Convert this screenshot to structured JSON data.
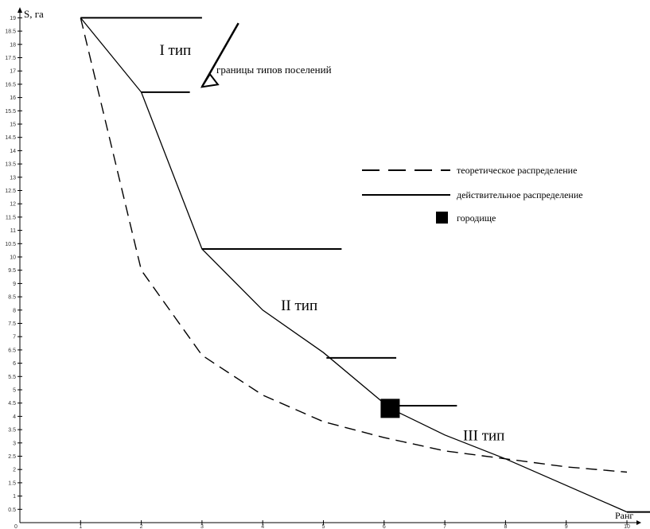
{
  "chart_data": {
    "type": "line",
    "title": "",
    "xlabel": "Ранг",
    "ylabel": "S, га",
    "xlim": [
      0,
      10
    ],
    "ylim": [
      0,
      19
    ],
    "x_ticks": [
      1,
      2,
      3,
      4,
      5,
      6,
      7,
      8,
      9,
      10
    ],
    "y_ticks": [
      "0.5",
      "1",
      "1.5",
      "2",
      "2.5",
      "3",
      "3.5",
      "4",
      "4.5",
      "5",
      "5.5",
      "6",
      "6.5",
      "7",
      "7.5",
      "8",
      "8.5",
      "9",
      "9.5",
      "10",
      "10.5",
      "11",
      "11.5",
      "12",
      "12.5",
      "13",
      "13.5",
      "14",
      "14.5",
      "15",
      "15.5",
      "16",
      "16.5",
      "17",
      "17.5",
      "18",
      "18.5",
      "19"
    ],
    "origin_label": "0",
    "series": [
      {
        "name": "теоретическое распределение",
        "style": "dashed",
        "x": [
          1,
          2,
          3,
          4,
          5,
          6,
          7,
          8,
          9,
          10
        ],
        "y": [
          19,
          9.5,
          6.3,
          4.8,
          3.8,
          3.2,
          2.7,
          2.4,
          2.1,
          1.9
        ]
      },
      {
        "name": "действительное распределение",
        "style": "solid",
        "x": [
          1,
          2,
          3,
          4,
          5,
          6.1,
          7,
          8,
          9,
          10
        ],
        "y": [
          19,
          16.2,
          10.3,
          8.0,
          6.4,
          4.3,
          3.3,
          2.4,
          1.4,
          0.4
        ]
      }
    ],
    "hillfort": {
      "name": "городище",
      "x": 6.1,
      "y": 4.3
    },
    "boundaries": [
      {
        "y": 19,
        "x_start": 1,
        "x_end": 3.0
      },
      {
        "y": 16.2,
        "x_start": 2,
        "x_end": 2.8
      },
      {
        "y": 10.3,
        "x_start": 3,
        "x_end": 5.3
      },
      {
        "y": 6.2,
        "x_start": 5.05,
        "x_end": 6.2
      },
      {
        "y": 4.4,
        "x_start": 6.1,
        "x_end": 7.2
      },
      {
        "y": 0.4,
        "x_start": 10,
        "x_end": 10.4
      }
    ],
    "type_labels": [
      {
        "text": "I тип",
        "x": 2.3,
        "y": 17.6
      },
      {
        "text": "II тип",
        "x": 4.3,
        "y": 8.0
      },
      {
        "text": "III тип",
        "x": 7.3,
        "y": 3.1
      }
    ],
    "boundary_note": {
      "text": "границы типов поселений",
      "pointer_from": {
        "x": 3.6,
        "y": 18.8
      },
      "pointer_to": {
        "x": 3.0,
        "y": 16.4
      }
    },
    "legend_placement": "right",
    "grid": false
  }
}
